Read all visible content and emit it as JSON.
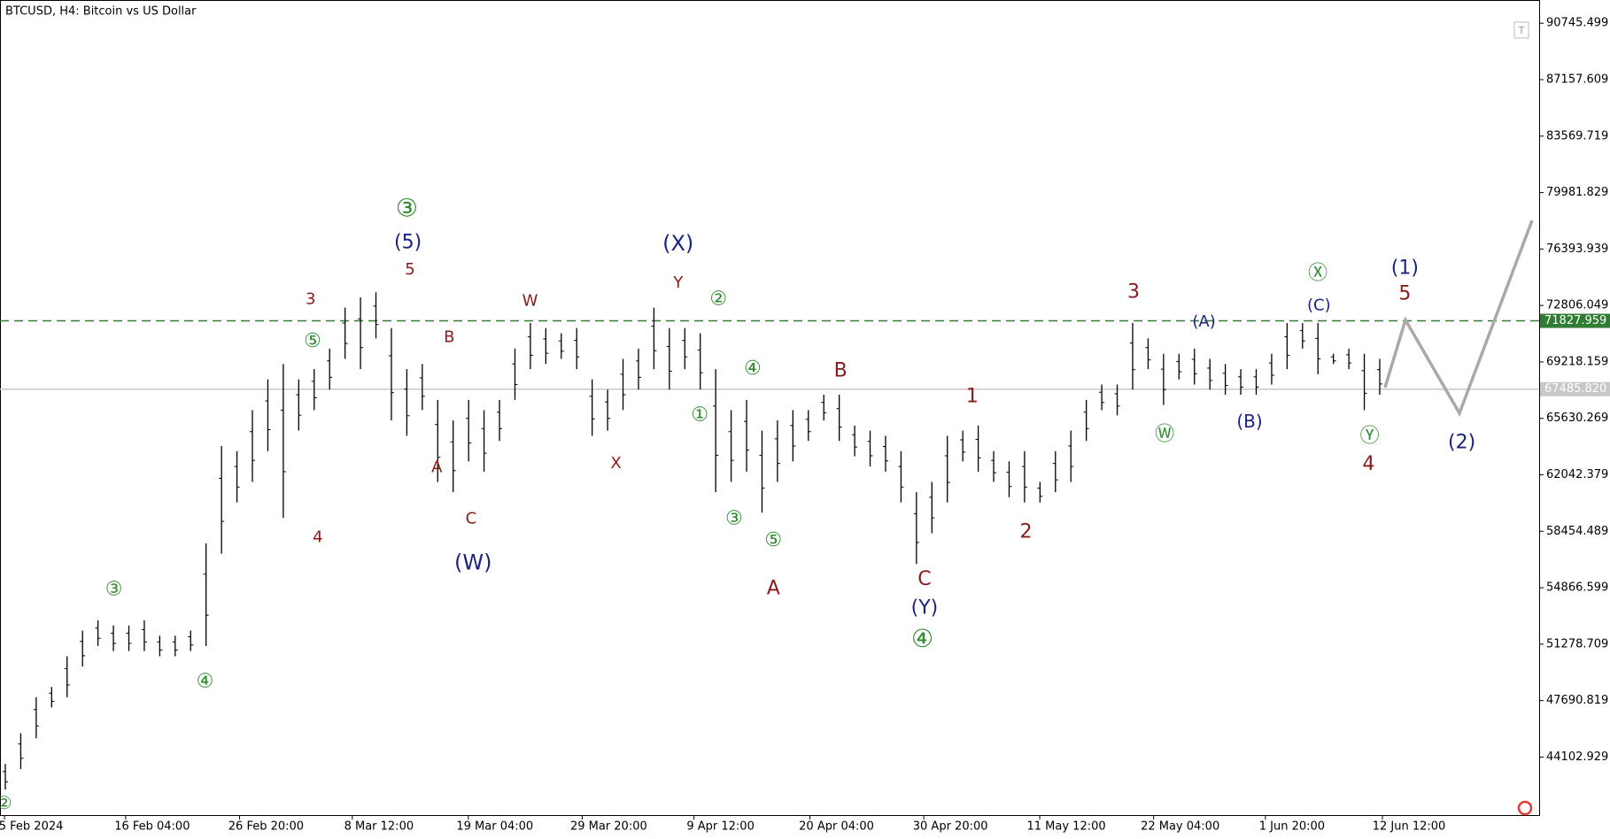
{
  "chart_data": {
    "type": "candlestick",
    "title": "BTCUSD, H4:  Bitcoin vs US Dollar",
    "color": "#000000",
    "high": [
      43669,
      45624,
      47905,
      48557,
      50512,
      52141,
      52793,
      52467,
      52467,
      52793,
      51816,
      51816,
      52141,
      57681,
      63872,
      63546,
      66153,
      68108,
      69086,
      68108,
      68760,
      70063,
      72670,
      73322,
      73648,
      71367,
      68760,
      69086,
      66805,
      65501,
      66805,
      66153,
      66805,
      70063,
      71692,
      71367,
      71041,
      71367,
      68108,
      67456,
      69411,
      70063,
      72670,
      71367,
      71367,
      71041,
      68760,
      66153,
      66805,
      64850,
      65501,
      66153,
      66153,
      67131,
      67131,
      65175,
      64850,
      64524,
      63546,
      60939,
      61591,
      64524,
      64850,
      65175,
      63546,
      62894,
      63546,
      61591,
      63546,
      64850,
      66805,
      67782,
      67782,
      71692,
      70715,
      69737,
      69737,
      70063,
      69411,
      69086,
      68760,
      68760,
      69737,
      71692,
      71692,
      71692,
      69737,
      70063,
      69737,
      69411
    ],
    "low": [
      42040,
      43343,
      45299,
      47254,
      47905,
      49860,
      51164,
      50838,
      50838,
      50838,
      50512,
      50512,
      50838,
      51164,
      57029,
      60288,
      61591,
      63546,
      59310,
      64850,
      66153,
      67456,
      69411,
      68760,
      70715,
      65501,
      64524,
      66153,
      61591,
      60939,
      62894,
      62243,
      64198,
      66805,
      68760,
      69086,
      69411,
      68760,
      64524,
      64850,
      66153,
      67456,
      68760,
      67456,
      68760,
      67456,
      60939,
      61591,
      62243,
      59636,
      61591,
      62894,
      64198,
      65501,
      64198,
      63220,
      62569,
      62243,
      60288,
      56377,
      58333,
      60288,
      62894,
      62243,
      61591,
      60614,
      60288,
      60288,
      60939,
      61591,
      64198,
      66153,
      65827,
      67456,
      68760,
      66479,
      68108,
      67782,
      67456,
      67131,
      67131,
      67131,
      67782,
      68760,
      70063,
      68434,
      69086,
      68760,
      66153,
      67131
    ],
    "ylim": [
      40414,
      92221
    ],
    "yticks": [
      90745.499,
      87157.609,
      83569.719,
      79981.829,
      76393.939,
      72806.049,
      69218.159,
      65630.269,
      62042.379,
      58454.489,
      54866.599,
      51278.709,
      47690.819,
      44102.929
    ],
    "time_labels": [
      "5 Feb 2024",
      "16 Feb 04:00",
      "26 Feb 20:00",
      "8 Mar 12:00",
      "19 Mar 04:00",
      "29 Mar 20:00",
      "9 Apr 12:00",
      "20 Apr 04:00",
      "30 Apr 20:00",
      "11 May 12:00",
      "22 May 04:00",
      "1 Jun 20:00",
      "12 Jun 12:00"
    ],
    "levels": [
      {
        "value": 71827.959,
        "color": "#2e7d32",
        "style": "dashed"
      },
      {
        "value": 67485.82,
        "label": "67485.820",
        "color": "#c8c8c8",
        "style": "solid"
      }
    ],
    "forecast": {
      "color": "#a9a9a9",
      "values": [
        67587,
        71888,
        65958,
        78210
      ]
    },
    "wave_labels": [
      {
        "text": "②",
        "color": "#2e8b2e"
      },
      {
        "text": "③",
        "color": "#2e8b2e"
      },
      {
        "text": "④",
        "color": "#2e8b2e"
      },
      {
        "text": "⑤",
        "color": "#2e8b2e"
      },
      {
        "text": "③",
        "color": "#2e8b2e"
      },
      {
        "text": "②",
        "color": "#2e8b2e"
      },
      {
        "text": "④",
        "color": "#2e8b2e"
      },
      {
        "text": "①",
        "color": "#2e8b2e"
      },
      {
        "text": "③",
        "color": "#2e8b2e"
      },
      {
        "text": "⑤",
        "color": "#2e8b2e"
      },
      {
        "text": "④",
        "color": "#2e8b2e"
      },
      {
        "text": "Ⓦ",
        "color": "#2e8b2e"
      },
      {
        "text": "Ⓧ",
        "color": "#2e8b2e"
      },
      {
        "text": "Ⓨ",
        "color": "#2e8b2e"
      },
      {
        "text": "3",
        "color": "#8b1a1a"
      },
      {
        "text": "4",
        "color": "#8b1a1a"
      },
      {
        "text": "5",
        "color": "#8b1a1a"
      },
      {
        "text": "B",
        "color": "#8b1a1a"
      },
      {
        "text": "A",
        "color": "#8b1a1a"
      },
      {
        "text": "C",
        "color": "#8b1a1a"
      },
      {
        "text": "W",
        "color": "#8b1a1a"
      },
      {
        "text": "X",
        "color": "#8b1a1a"
      },
      {
        "text": "Y",
        "color": "#8b1a1a"
      },
      {
        "text": "B",
        "color": "#8b1a1a"
      },
      {
        "text": "A",
        "color": "#8b1a1a"
      },
      {
        "text": "C",
        "color": "#8b1a1a"
      },
      {
        "text": "1",
        "color": "#8b1a1a"
      },
      {
        "text": "2",
        "color": "#8b1a1a"
      },
      {
        "text": "3",
        "color": "#8b1a1a"
      },
      {
        "text": "5",
        "color": "#8b1a1a"
      },
      {
        "text": "4",
        "color": "#8b1a1a"
      },
      {
        "text": "(5)",
        "color": "#1a237e"
      },
      {
        "text": "(X)",
        "color": "#1a237e"
      },
      {
        "text": "(W)",
        "color": "#1a237e"
      },
      {
        "text": "(Y)",
        "color": "#1a237e"
      },
      {
        "text": "(A)",
        "color": "#1a237e"
      },
      {
        "text": "(B)",
        "color": "#1a237e"
      },
      {
        "text": "(C)",
        "color": "#1a237e"
      },
      {
        "text": "(1)",
        "color": "#1a237e"
      },
      {
        "text": "(2)",
        "color": "#1a237e"
      }
    ]
  }
}
